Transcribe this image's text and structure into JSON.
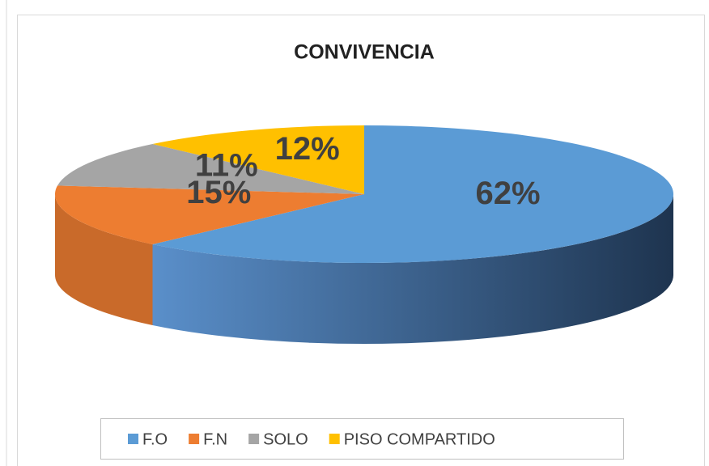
{
  "chart_data": {
    "type": "pie",
    "title": "CONVIVENCIA",
    "categories": [
      "F.O",
      "F.N",
      "SOLO",
      "PISO COMPARTIDO"
    ],
    "values": [
      62,
      15,
      11,
      12
    ],
    "value_labels": [
      "62%",
      "15%",
      "11%",
      "12%"
    ],
    "colors": [
      "#5b9bd5",
      "#ed7d31",
      "#a5a5a5",
      "#ffc000"
    ],
    "legend": "bottom"
  }
}
